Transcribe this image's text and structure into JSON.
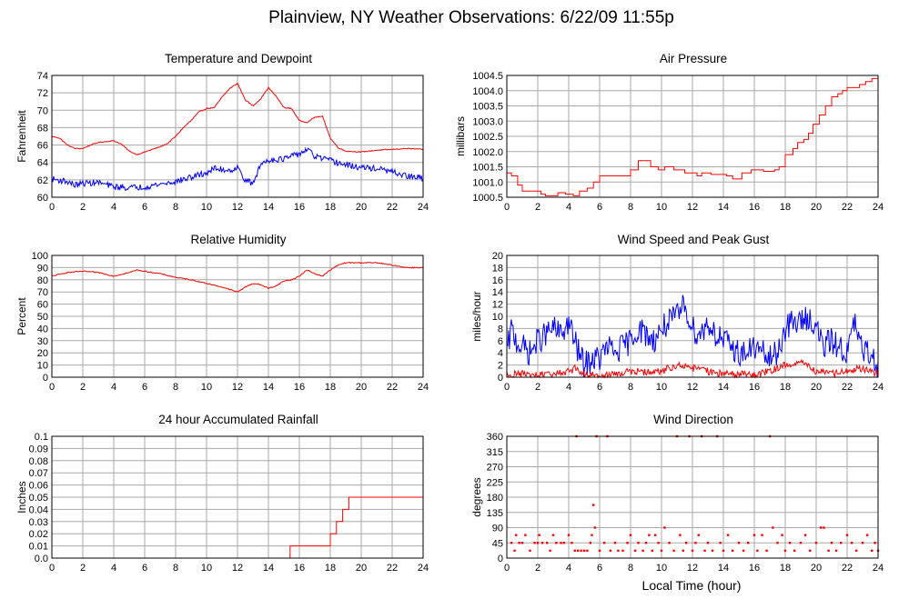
{
  "page_title": "Plainview, NY Weather Observations: 6/22/09 11:55p",
  "shared_xlabel": "Local Time (hour)",
  "colors": {
    "red": "#ff0000",
    "blue": "#0000ff",
    "grid": "#a8a8a8"
  },
  "chart_data": [
    {
      "id": "temp",
      "type": "line",
      "title": "Temperature and Dewpoint",
      "xlabel": "",
      "ylabel": "Fahrenheit",
      "xlim": [
        0,
        24
      ],
      "ylim": [
        60,
        74
      ],
      "xticks": [
        0,
        2,
        4,
        6,
        8,
        10,
        12,
        14,
        16,
        18,
        20,
        22,
        24
      ],
      "yticks": [
        60,
        62,
        64,
        66,
        68,
        70,
        72,
        74
      ],
      "ytick_labels": [
        "60",
        "62",
        "64",
        "66",
        "68",
        "70",
        "72",
        "74"
      ],
      "grid": true,
      "series": [
        {
          "color": "#ff0000",
          "step": false,
          "noise": 0.05,
          "x": [
            0,
            0.5,
            1,
            1.5,
            2,
            2.5,
            3,
            3.5,
            4,
            4.5,
            5,
            5.5,
            6,
            6.5,
            7,
            7.5,
            8,
            8.5,
            9,
            9.5,
            10,
            10.5,
            11,
            11.5,
            12,
            12.5,
            13,
            13.5,
            14,
            14.5,
            15,
            15.5,
            16,
            16.5,
            17,
            17.5,
            18,
            18.5,
            19,
            20,
            21,
            22,
            23,
            24
          ],
          "y": [
            67,
            66.8,
            66,
            65.6,
            65.6,
            66,
            66.3,
            66.4,
            66.5,
            66.1,
            65.3,
            64.9,
            65.2,
            65.5,
            65.8,
            66.2,
            67,
            68,
            68.8,
            69.8,
            70.2,
            70.3,
            71.5,
            72.5,
            73.1,
            71.2,
            70.5,
            71.3,
            72.6,
            71.6,
            70.3,
            70.2,
            68.8,
            68.6,
            69.2,
            69.3,
            66.8,
            65.7,
            65.3,
            65.2,
            65.4,
            65.5,
            65.6,
            65.5
          ]
        },
        {
          "color": "#0000ff",
          "step": false,
          "noise": 0.35,
          "x": [
            0,
            1,
            1.5,
            2,
            3,
            4,
            5,
            6,
            7,
            8,
            9,
            10,
            10.5,
            11,
            11.5,
            12,
            12.5,
            13,
            13.5,
            14,
            15,
            16,
            16.5,
            17,
            18,
            19,
            20,
            21,
            22,
            23,
            24
          ],
          "y": [
            62.1,
            61.8,
            61.4,
            61.6,
            61.7,
            61.2,
            61.1,
            61.2,
            61.5,
            61.8,
            62.3,
            62.8,
            63.3,
            63.2,
            63.1,
            63.4,
            62,
            61.5,
            63.8,
            64.3,
            64.4,
            65,
            65.5,
            64.7,
            64.2,
            63.7,
            63.4,
            63.3,
            62.9,
            62.4,
            62.2
          ]
        }
      ]
    },
    {
      "id": "pressure",
      "type": "line",
      "title": "Air Pressure",
      "xlabel": "",
      "ylabel": "millibars",
      "xlim": [
        0,
        24
      ],
      "ylim": [
        1000.5,
        1004.5
      ],
      "xticks": [
        0,
        2,
        4,
        6,
        8,
        10,
        12,
        14,
        16,
        18,
        20,
        22,
        24
      ],
      "yticks": [
        1000.5,
        1001,
        1001.5,
        1002,
        1002.5,
        1003,
        1003.5,
        1004,
        1004.5
      ],
      "ytick_labels": [
        "1000.5",
        "1001.0",
        "1001.5",
        "1002.0",
        "1002.5",
        "1003.0",
        "1003.5",
        "1004.0",
        "1004.5"
      ],
      "grid": true,
      "series": [
        {
          "color": "#ff0000",
          "step": true,
          "noise": 0,
          "x": [
            0,
            0.3,
            0.7,
            1,
            1.5,
            2.2,
            2.5,
            3.3,
            3.8,
            4.3,
            4.7,
            5.2,
            5.6,
            6,
            7.5,
            8,
            8.5,
            9.3,
            9.8,
            10.2,
            10.8,
            11.5,
            12.3,
            12.6,
            13.2,
            14.2,
            14.6,
            15.2,
            15.8,
            16.6,
            17.3,
            17.6,
            18,
            18.5,
            18.8,
            19.2,
            19.5,
            19.8,
            20.2,
            20.6,
            21,
            21.4,
            21.7,
            22,
            22.5,
            22.8,
            23.2,
            23.6,
            24
          ],
          "y": [
            1001.3,
            1001.2,
            1000.9,
            1000.7,
            1000.7,
            1000.6,
            1000.55,
            1000.65,
            1000.6,
            1000.55,
            1000.7,
            1000.8,
            1001,
            1001.2,
            1001.2,
            1001.4,
            1001.7,
            1001.5,
            1001.4,
            1001.5,
            1001.4,
            1001.3,
            1001.2,
            1001.3,
            1001.25,
            1001.2,
            1001.1,
            1001.3,
            1001.4,
            1001.35,
            1001.4,
            1001.5,
            1001.9,
            1002.1,
            1002.3,
            1002.4,
            1002.6,
            1002.9,
            1003.2,
            1003.5,
            1003.8,
            1003.9,
            1004.0,
            1004.1,
            1004.1,
            1004.2,
            1004.3,
            1004.4,
            1004.3
          ]
        }
      ]
    },
    {
      "id": "humidity",
      "type": "line",
      "title": "Relative Humidity",
      "xlabel": "",
      "ylabel": "Percent",
      "xlim": [
        0,
        24
      ],
      "ylim": [
        0,
        100
      ],
      "xticks": [
        0,
        2,
        4,
        6,
        8,
        10,
        12,
        14,
        16,
        18,
        20,
        22,
        24
      ],
      "yticks": [
        0,
        10,
        20,
        30,
        40,
        50,
        60,
        70,
        80,
        90,
        100
      ],
      "ytick_labels": [
        "0",
        "10",
        "20",
        "30",
        "40",
        "50",
        "60",
        "70",
        "80",
        "90",
        "100"
      ],
      "grid": true,
      "series": [
        {
          "color": "#ff0000",
          "step": false,
          "noise": 0.4,
          "x": [
            0,
            1,
            2,
            3,
            4,
            5,
            5.5,
            6,
            7,
            8,
            9,
            10,
            11,
            11.5,
            12,
            12.5,
            13,
            13.5,
            14,
            14.5,
            15,
            15.5,
            16,
            16.5,
            17,
            17.5,
            18,
            18.5,
            19,
            20,
            21,
            22,
            23,
            24
          ],
          "y": [
            83,
            86,
            87,
            86,
            83,
            86,
            88,
            87,
            85,
            82,
            80,
            77,
            74,
            72,
            70,
            74,
            77,
            76,
            73,
            75,
            79,
            80,
            83,
            88,
            85,
            83,
            88,
            92,
            94,
            94,
            94,
            92,
            90,
            90
          ]
        }
      ]
    },
    {
      "id": "wind",
      "type": "line",
      "title": "Wind Speed and Peak Gust",
      "xlabel": "",
      "ylabel": "miles/hour",
      "xlim": [
        0,
        24
      ],
      "ylim": [
        0,
        20
      ],
      "xticks": [
        0,
        2,
        4,
        6,
        8,
        10,
        12,
        14,
        16,
        18,
        20,
        22,
        24
      ],
      "yticks": [
        0,
        2,
        4,
        6,
        8,
        10,
        12,
        14,
        16,
        18,
        20
      ],
      "ytick_labels": [
        "0",
        "2",
        "4",
        "6",
        "8",
        "10",
        "12",
        "14",
        "16",
        "18",
        "20"
      ],
      "grid": true,
      "series": [
        {
          "color": "#0000ff",
          "step": false,
          "noise": 2.2,
          "x": [
            0,
            0.3,
            0.6,
            1,
            1.5,
            2,
            2.5,
            3,
            3.5,
            4,
            4.5,
            5,
            5.5,
            6,
            6.5,
            7,
            7.5,
            8,
            8.5,
            9,
            9.5,
            10,
            10.5,
            11,
            11.5,
            12,
            12.5,
            13,
            13.5,
            14,
            14.5,
            15,
            15.5,
            16,
            16.5,
            17,
            17.5,
            18,
            18.5,
            19,
            19.5,
            20,
            20.5,
            21,
            21.5,
            22,
            22.5,
            23,
            23.5,
            24
          ],
          "y": [
            4,
            8,
            6,
            5,
            4,
            6,
            7,
            8,
            7,
            9,
            5,
            2,
            3,
            3,
            5,
            4,
            5,
            6,
            8,
            7,
            6,
            8,
            9,
            10,
            12,
            8,
            7,
            9,
            7,
            6,
            5,
            4,
            4,
            5,
            4,
            3,
            4,
            8,
            9,
            9,
            10,
            8,
            5,
            6,
            5,
            4,
            9,
            4,
            4,
            2
          ]
        },
        {
          "color": "#ff0000",
          "step": false,
          "noise": 0.6,
          "x": [
            0,
            1,
            2,
            3,
            4,
            4.5,
            5,
            6,
            7,
            8,
            9,
            10,
            11,
            12,
            13,
            14,
            15,
            16,
            17,
            18,
            19,
            20,
            21,
            22,
            23,
            24
          ],
          "y": [
            0.5,
            0.5,
            0.3,
            0.5,
            1,
            1.5,
            0.5,
            0.3,
            0.5,
            1,
            0.8,
            1,
            2,
            1.5,
            1,
            0.5,
            0.5,
            0.3,
            1,
            2,
            2.5,
            1,
            0.5,
            1,
            1.5,
            0.5
          ]
        }
      ]
    },
    {
      "id": "rain",
      "type": "line",
      "title": "24 hour Accumulated Rainfall",
      "xlabel": "",
      "ylabel": "Inches",
      "xlim": [
        0,
        24
      ],
      "ylim": [
        0,
        0.1
      ],
      "xticks": [
        0,
        2,
        4,
        6,
        8,
        10,
        12,
        14,
        16,
        18,
        20,
        22,
        24
      ],
      "yticks": [
        0,
        0.01,
        0.02,
        0.03,
        0.04,
        0.05,
        0.06,
        0.07,
        0.08,
        0.09,
        0.1
      ],
      "ytick_labels": [
        "0.0",
        "0.01",
        "0.02",
        "0.03",
        "0.04",
        "0.05",
        "0.06",
        "0.07",
        "0.08",
        "0.09",
        "0.1"
      ],
      "grid": true,
      "series": [
        {
          "color": "#ff0000",
          "step": true,
          "noise": 0,
          "x": [
            0,
            15.4,
            18,
            18.4,
            18.8,
            19.2,
            24
          ],
          "y": [
            0,
            0.01,
            0.02,
            0.03,
            0.04,
            0.05,
            0.05
          ]
        }
      ]
    },
    {
      "id": "direction",
      "type": "scatter",
      "title": "Wind Direction",
      "xlabel": "Local Time (hour)",
      "ylabel": "degrees",
      "xlim": [
        0,
        24
      ],
      "ylim": [
        0,
        360
      ],
      "xticks": [
        0,
        2,
        4,
        6,
        8,
        10,
        12,
        14,
        16,
        18,
        20,
        22,
        24
      ],
      "yticks": [
        0,
        45,
        90,
        135,
        180,
        225,
        270,
        315,
        360
      ],
      "ytick_labels": [
        "0",
        "45",
        "90",
        "135",
        "180",
        "225",
        "270",
        "315",
        "360"
      ],
      "grid": true,
      "series": [
        {
          "color": "#ff0000",
          "x": [
            0.3,
            0.5,
            0.6,
            0.8,
            1,
            1.2,
            1.5,
            1.8,
            2,
            2.1,
            2.3,
            2.6,
            2.8,
            3,
            3.2,
            3.5,
            3.7,
            4,
            4.2,
            4.4,
            4.5,
            4.6,
            4.8,
            5,
            5.2,
            5.4,
            5.5,
            5.6,
            5.7,
            5.8,
            6,
            6.3,
            6.5,
            6.7,
            7,
            7.2,
            7.5,
            7.8,
            8,
            8.3,
            8.5,
            8.8,
            9,
            9.2,
            9.4,
            9.6,
            9.8,
            10,
            10.2,
            10.5,
            10.8,
            11,
            11.2,
            11.4,
            11.6,
            11.8,
            12,
            12.2,
            12.4,
            12.6,
            12.8,
            13,
            13.3,
            13.6,
            13.8,
            14,
            14.3,
            14.6,
            15,
            15.3,
            15.6,
            16,
            16.2,
            16.5,
            16.8,
            17,
            17.2,
            17.5,
            17.8,
            18,
            18.3,
            18.6,
            19,
            19.3,
            19.6,
            20,
            20.3,
            20.5,
            20.8,
            21,
            21.3,
            21.6,
            22,
            22.3,
            22.6,
            23,
            23.3,
            23.6,
            23.8,
            24
          ],
          "y": [
            45,
            22,
            68,
            45,
            45,
            68,
            22,
            45,
            45,
            68,
            45,
            45,
            22,
            68,
            45,
            45,
            45,
            68,
            45,
            22,
            360,
            22,
            22,
            22,
            22,
            45,
            68,
            157,
            90,
            360,
            22,
            45,
            360,
            22,
            45,
            22,
            22,
            45,
            68,
            22,
            45,
            22,
            45,
            68,
            22,
            68,
            45,
            22,
            90,
            45,
            22,
            360,
            68,
            22,
            45,
            360,
            22,
            45,
            68,
            360,
            22,
            45,
            22,
            360,
            45,
            22,
            68,
            22,
            45,
            22,
            45,
            68,
            22,
            68,
            22,
            360,
            90,
            45,
            68,
            22,
            45,
            22,
            45,
            68,
            22,
            45,
            90,
            90,
            22,
            45,
            22,
            45,
            68,
            45,
            22,
            45,
            68,
            22,
            45,
            22
          ]
        }
      ]
    }
  ]
}
